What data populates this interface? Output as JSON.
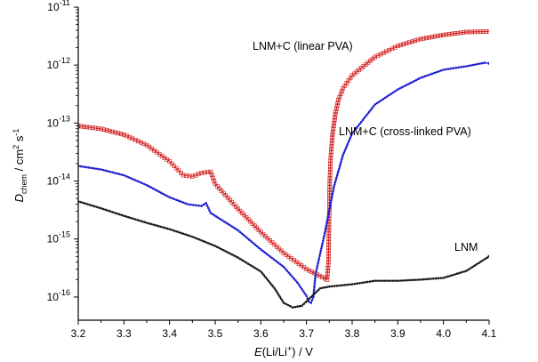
{
  "chart_data": {
    "type": "scatter",
    "title": "",
    "xlabel": {
      "main": "E",
      "rest": "(Li/Li",
      "sup": "+",
      "tail": ") / V"
    },
    "ylabel": {
      "main": "D",
      "sub": "chem",
      "rest": " / cm",
      "sup1": "2",
      "mid": " s",
      "sup2": "-1"
    },
    "xlim": [
      3.2,
      4.1
    ],
    "ylim_log10": [
      -16.4,
      -11
    ],
    "xticks": [
      "3.2",
      "3.3",
      "3.4",
      "3.5",
      "3.6",
      "3.7",
      "3.8",
      "3.9",
      "4.0",
      "4.1"
    ],
    "yticks": [
      {
        "base": "10",
        "exp": "-16",
        "log": -16
      },
      {
        "base": "10",
        "exp": "-15",
        "log": -15
      },
      {
        "base": "10",
        "exp": "-14",
        "log": -14
      },
      {
        "base": "10",
        "exp": "-13",
        "log": -13
      },
      {
        "base": "10",
        "exp": "-12",
        "log": -12
      },
      {
        "base": "10",
        "exp": "-11",
        "log": -11
      }
    ],
    "series": [
      {
        "name": "LNM+C (linear PVA)",
        "color": "#d22020",
        "marker": "square-open",
        "points": [
          [
            3.2,
            -13.05
          ],
          [
            3.25,
            -13.1
          ],
          [
            3.3,
            -13.2
          ],
          [
            3.35,
            -13.38
          ],
          [
            3.4,
            -13.66
          ],
          [
            3.43,
            -13.9
          ],
          [
            3.45,
            -13.92
          ],
          [
            3.47,
            -13.86
          ],
          [
            3.49,
            -13.84
          ],
          [
            3.5,
            -14.05
          ],
          [
            3.55,
            -14.48
          ],
          [
            3.6,
            -14.88
          ],
          [
            3.65,
            -15.24
          ],
          [
            3.7,
            -15.52
          ],
          [
            3.74,
            -15.68
          ],
          [
            3.745,
            -15.7
          ],
          [
            3.748,
            -15.4
          ],
          [
            3.751,
            -14.0
          ],
          [
            3.753,
            -13.6
          ],
          [
            3.757,
            -13.2
          ],
          [
            3.763,
            -12.85
          ],
          [
            3.77,
            -12.6
          ],
          [
            3.78,
            -12.4
          ],
          [
            3.8,
            -12.18
          ],
          [
            3.85,
            -11.86
          ],
          [
            3.9,
            -11.67
          ],
          [
            3.95,
            -11.55
          ],
          [
            4.0,
            -11.48
          ],
          [
            4.05,
            -11.43
          ],
          [
            4.1,
            -11.42
          ]
        ]
      },
      {
        "name": "LNM+C (cross-linked PVA)",
        "color": "#1f1fd0",
        "marker": "dot",
        "points": [
          [
            3.2,
            -13.74
          ],
          [
            3.25,
            -13.8
          ],
          [
            3.3,
            -13.9
          ],
          [
            3.35,
            -14.07
          ],
          [
            3.4,
            -14.28
          ],
          [
            3.44,
            -14.4
          ],
          [
            3.47,
            -14.43
          ],
          [
            3.48,
            -14.38
          ],
          [
            3.49,
            -14.55
          ],
          [
            3.55,
            -14.85
          ],
          [
            3.6,
            -15.18
          ],
          [
            3.65,
            -15.48
          ],
          [
            3.68,
            -15.75
          ],
          [
            3.7,
            -15.98
          ],
          [
            3.705,
            -16.08
          ],
          [
            3.71,
            -16.1
          ],
          [
            3.715,
            -16.0
          ],
          [
            3.72,
            -15.6
          ],
          [
            3.73,
            -15.25
          ],
          [
            3.74,
            -14.9
          ],
          [
            3.75,
            -14.5
          ],
          [
            3.76,
            -14.1
          ],
          [
            3.78,
            -13.55
          ],
          [
            3.8,
            -13.18
          ],
          [
            3.85,
            -12.68
          ],
          [
            3.9,
            -12.42
          ],
          [
            3.95,
            -12.22
          ],
          [
            4.0,
            -12.08
          ],
          [
            4.05,
            -12.02
          ],
          [
            4.09,
            -11.96
          ],
          [
            4.1,
            -11.97
          ]
        ]
      },
      {
        "name": "LNM",
        "color": "#1a1a1a",
        "marker": "dot",
        "points": [
          [
            3.2,
            -14.35
          ],
          [
            3.25,
            -14.47
          ],
          [
            3.3,
            -14.6
          ],
          [
            3.35,
            -14.72
          ],
          [
            3.4,
            -14.83
          ],
          [
            3.45,
            -14.96
          ],
          [
            3.5,
            -15.12
          ],
          [
            3.55,
            -15.32
          ],
          [
            3.6,
            -15.56
          ],
          [
            3.63,
            -15.85
          ],
          [
            3.65,
            -16.1
          ],
          [
            3.67,
            -16.18
          ],
          [
            3.69,
            -16.15
          ],
          [
            3.71,
            -16.0
          ],
          [
            3.73,
            -15.85
          ],
          [
            3.75,
            -15.82
          ],
          [
            3.8,
            -15.78
          ],
          [
            3.85,
            -15.72
          ],
          [
            3.9,
            -15.72
          ],
          [
            3.95,
            -15.7
          ],
          [
            4.0,
            -15.67
          ],
          [
            4.05,
            -15.55
          ],
          [
            4.1,
            -15.3
          ]
        ]
      }
    ],
    "annotations": [
      {
        "text": "LNM+C (linear PVA)",
        "series": 0
      },
      {
        "text": "LNM+C (cross-linked PVA)",
        "series": 1
      },
      {
        "text": "LNM",
        "series": 2
      }
    ]
  }
}
